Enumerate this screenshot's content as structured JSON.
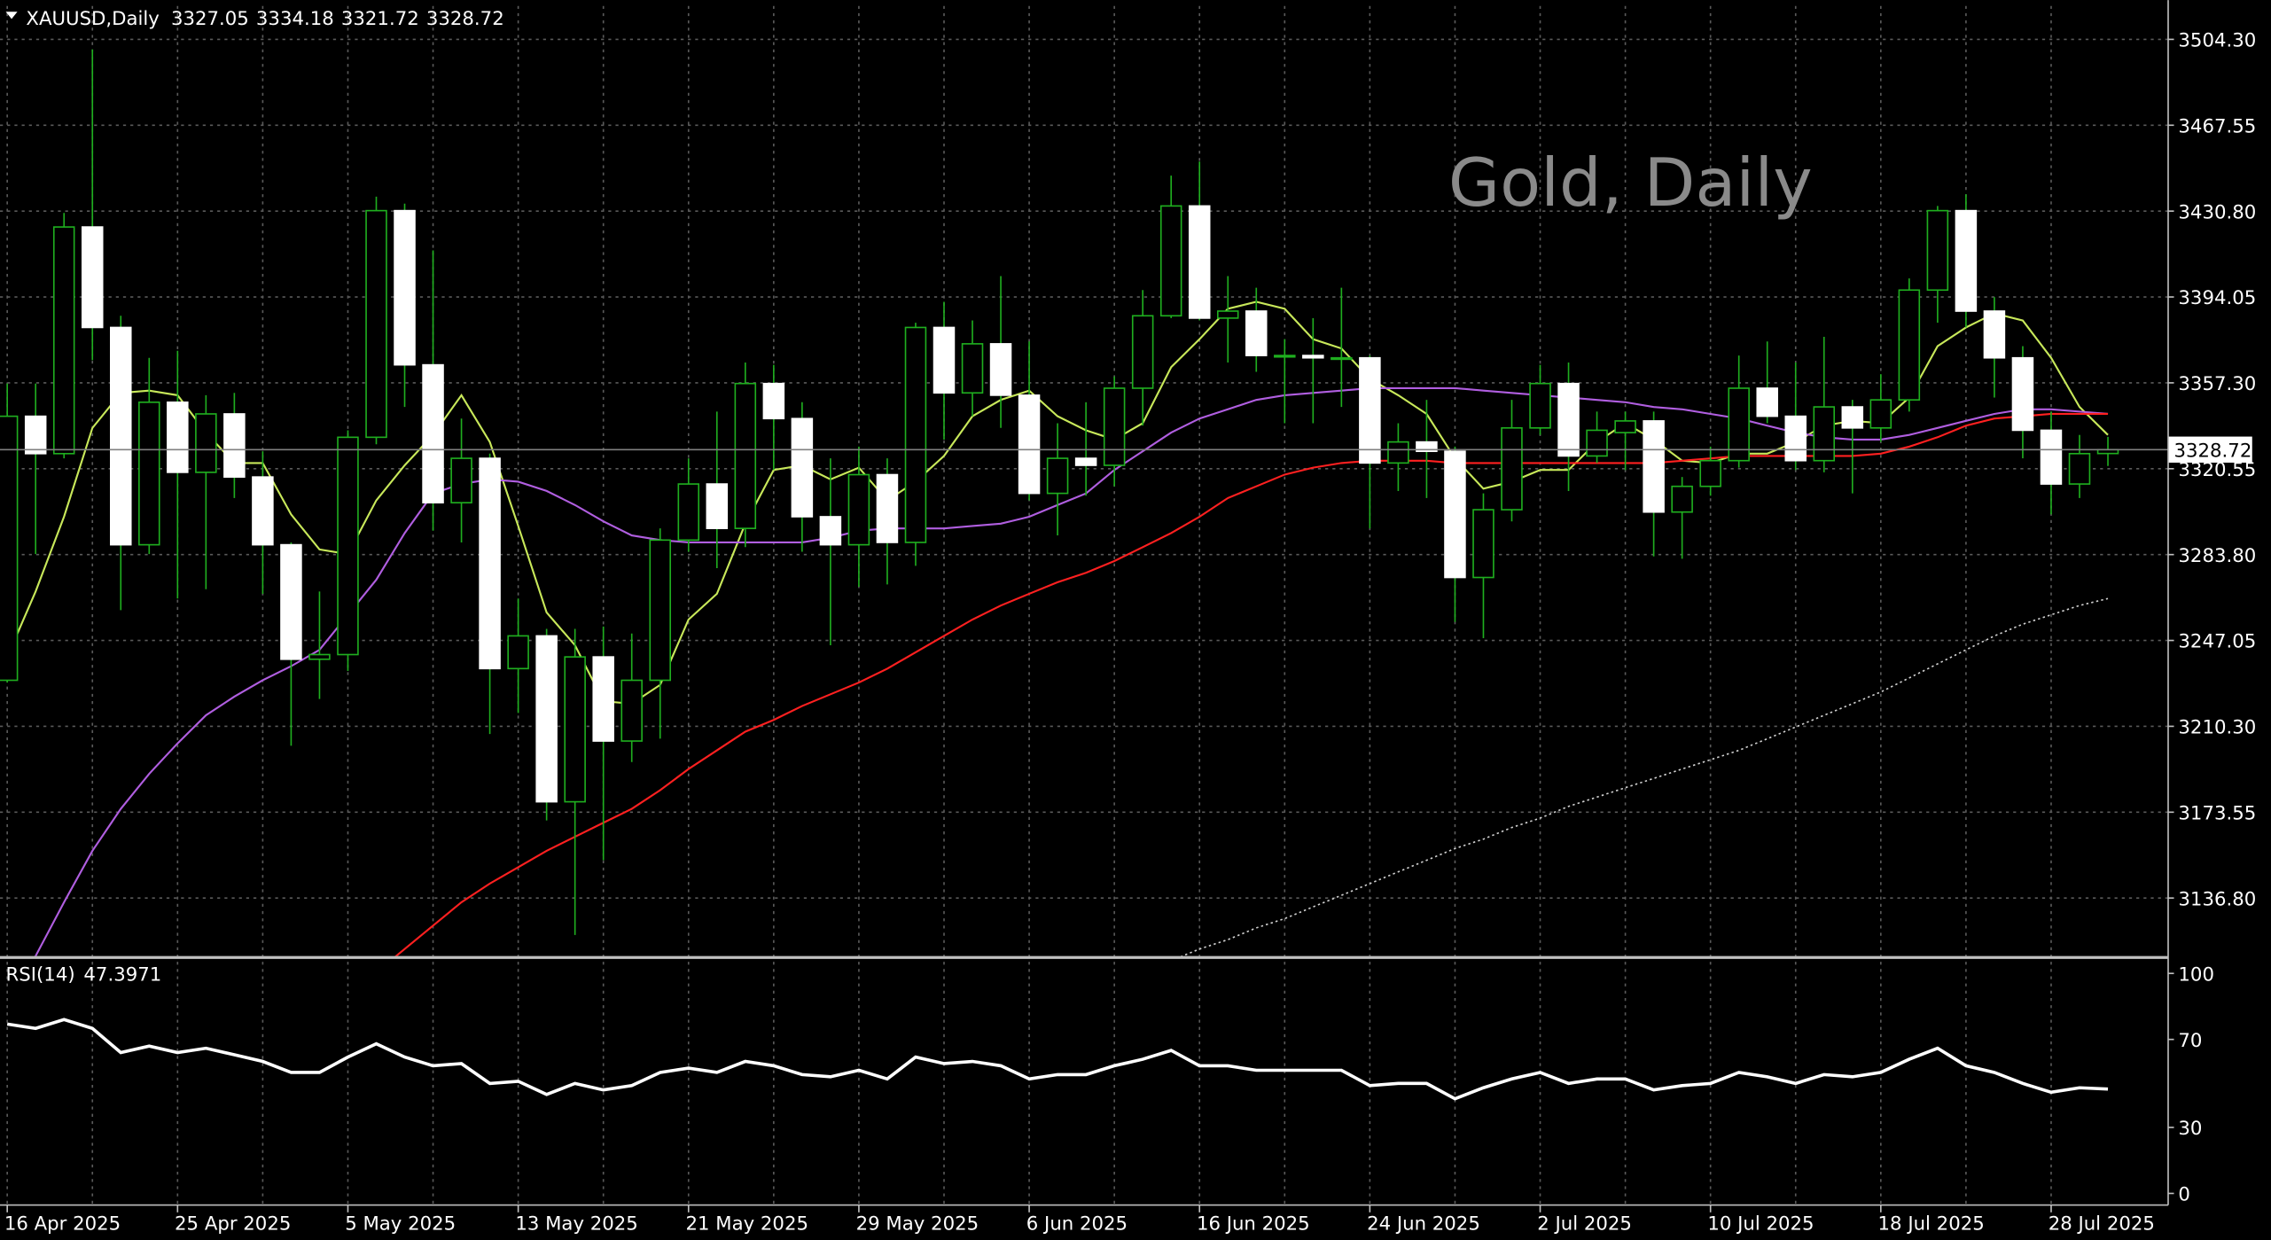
{
  "chart_data": [
    {
      "type": "candlestick",
      "title": "XAUUSD,Daily",
      "annotation": "Gold, Daily",
      "categories": [
        "16 Apr 2025",
        null,
        null,
        null,
        null,
        null,
        "25 Apr 2025",
        null,
        null,
        null,
        null,
        null,
        "5 May 2025",
        null,
        null,
        null,
        null,
        null,
        "13 May 2025",
        null,
        null,
        null,
        null,
        null,
        "21 May 2025",
        null,
        null,
        null,
        null,
        null,
        "29 May 2025",
        null,
        null,
        null,
        null,
        null,
        "6 Jun 2025",
        null,
        null,
        null,
        null,
        null,
        "16 Jun 2025",
        null,
        null,
        null,
        null,
        null,
        "24 Jun 2025",
        null,
        null,
        null,
        null,
        null,
        "2 Jul 2025",
        null,
        null,
        null,
        null,
        null,
        "10 Jul 2025",
        null,
        null,
        null,
        null,
        null,
        "18 Jul 2025",
        null,
        null,
        null,
        null,
        null,
        "28 Jul 2025",
        null,
        null
      ],
      "open": [
        3230,
        3343,
        3327,
        3424,
        3381,
        3288,
        3349,
        3319,
        3344,
        3317,
        3288,
        3239,
        3241,
        3334,
        3431,
        3365,
        3306,
        3325,
        3235,
        3249,
        3178,
        3240,
        3204,
        3230,
        3290,
        3314,
        3295,
        3357,
        3342,
        3300,
        3288,
        3318,
        3289,
        3381,
        3353,
        3374,
        3352,
        3310,
        3325,
        3322,
        3355,
        3386,
        3433,
        3385,
        3388,
        3369,
        3369,
        3368,
        3368,
        3323,
        3332,
        3328,
        3274,
        3303,
        3338,
        3357,
        3326,
        3336,
        3341,
        3302,
        3313,
        3324,
        3355,
        3343,
        3324,
        3347,
        3338,
        3350,
        3397,
        3431,
        3388,
        3368,
        3337,
        3314,
        3327.05
      ],
      "high": [
        3357,
        3357,
        3430,
        3500,
        3386,
        3368,
        3371,
        3352,
        3353,
        3328,
        3289,
        3268,
        3337,
        3437,
        3434,
        3414,
        3342,
        3327,
        3265,
        3252,
        3252,
        3253,
        3250,
        3295,
        3325,
        3345,
        3366,
        3365,
        3349,
        3325,
        3330,
        3325,
        3383,
        3392,
        3384,
        3403,
        3375,
        3340,
        3349,
        3360,
        3397,
        3446,
        3452,
        3403,
        3398,
        3376,
        3385,
        3398,
        3369,
        3340,
        3350,
        3330,
        3310,
        3350,
        3365,
        3366,
        3345,
        3345,
        3345,
        3317,
        3330,
        3369,
        3375,
        3366,
        3377,
        3350,
        3361,
        3402,
        3433,
        3438,
        3394,
        3373,
        3345,
        3335,
        3334.18
      ],
      "low": [
        3229,
        3284,
        3325,
        3367,
        3260,
        3284,
        3265,
        3269,
        3308,
        3267,
        3202,
        3222,
        3234,
        3331,
        3347,
        3294,
        3289,
        3207,
        3216,
        3170,
        3121,
        3153,
        3195,
        3205,
        3285,
        3278,
        3287,
        3320,
        3285,
        3245,
        3270,
        3271,
        3279,
        3333,
        3343,
        3338,
        3307,
        3292,
        3309,
        3313,
        3339,
        3385,
        3384,
        3366,
        3362,
        3340,
        3340,
        3347,
        3295,
        3311,
        3308,
        3255,
        3248,
        3298,
        3335,
        3311,
        3323,
        3320,
        3283,
        3282,
        3309,
        3321,
        3340,
        3320,
        3319,
        3310,
        3332,
        3345,
        3383,
        3381,
        3351,
        3325,
        3301,
        3308,
        3321.72
      ],
      "close": [
        3343,
        3327,
        3424,
        3381,
        3288,
        3349,
        3319,
        3344,
        3317,
        3288,
        3239,
        3241,
        3334,
        3431,
        3365,
        3306,
        3325,
        3235,
        3249,
        3178,
        3240,
        3204,
        3230,
        3290,
        3314,
        3295,
        3357,
        3342,
        3300,
        3288,
        3318,
        3289,
        3381,
        3353,
        3374,
        3352,
        3310,
        3325,
        3322,
        3355,
        3386,
        3433,
        3385,
        3388,
        3369,
        3369,
        3368,
        3368,
        3323,
        3332,
        3328,
        3274,
        3303,
        3338,
        3357,
        3326,
        3337,
        3341,
        3302,
        3313,
        3324,
        3355,
        3343,
        3324,
        3347,
        3338,
        3350,
        3397,
        3431,
        3388,
        3368,
        3337,
        3314,
        3327,
        3328.72
      ],
      "bull_color": "#000000",
      "bear_color": "#ffffff",
      "wick_color": "#1fae1f",
      "series": [
        {
          "color": "#c8e85a",
          "line_style": "solid",
          "values": [
            3240,
            3268,
            3300,
            3338,
            3353,
            3354,
            3352,
            3336,
            3323,
            3323,
            3301,
            3286,
            3284,
            3307,
            3322,
            3335,
            3352,
            3332,
            3296,
            3259,
            3245,
            3221,
            3220,
            3228,
            3256,
            3267,
            3297,
            3320,
            3322,
            3316,
            3321,
            3307,
            3315,
            3326,
            3343,
            3350,
            3354,
            3343,
            3337,
            3333,
            3340,
            3364,
            3376,
            3389,
            3392,
            3389,
            3376,
            3372,
            3359,
            3352,
            3344,
            3325,
            3312,
            3315,
            3320,
            3320,
            3332,
            3340,
            3333,
            3324,
            3323,
            3327,
            3327,
            3332,
            3339,
            3341,
            3340,
            3351,
            3373,
            3381,
            3387,
            3384,
            3368,
            3347,
            3335
          ]
        },
        {
          "color": "#b05ee0",
          "line_style": "solid",
          "values": [
            3100,
            3112,
            3135,
            3157,
            3175,
            3190,
            3203,
            3215,
            3223,
            3230,
            3236,
            3243,
            3258,
            3273,
            3293,
            3310,
            3314,
            3316,
            3315,
            3311,
            3305,
            3298,
            3292,
            3290,
            3289,
            3289,
            3289,
            3289,
            3289,
            3291,
            3294,
            3295,
            3295,
            3295,
            3296,
            3297,
            3300,
            3305,
            3310,
            3320,
            3328,
            3336,
            3342,
            3346,
            3350,
            3352,
            3353,
            3354,
            3355,
            3355,
            3355,
            3355,
            3354,
            3353,
            3352,
            3351,
            3350,
            3349,
            3347,
            3346,
            3344,
            3342,
            3339,
            3336,
            3334,
            3333,
            3333,
            3335,
            3338,
            3341,
            3344,
            3346,
            3346,
            3345,
            3344
          ]
        },
        {
          "color": "#ff2020",
          "line_style": "solid",
          "values": [
            null,
            null,
            null,
            null,
            null,
            null,
            null,
            null,
            null,
            null,
            null,
            null,
            null,
            3105,
            3115,
            3125,
            3135,
            3143,
            3150,
            3157,
            3163,
            3169,
            3175,
            3183,
            3192,
            3200,
            3208,
            3213,
            3219,
            3224,
            3229,
            3235,
            3242,
            3249,
            3256,
            3262,
            3267,
            3272,
            3276,
            3281,
            3287,
            3293,
            3300,
            3308,
            3313,
            3318,
            3321,
            3323,
            3324,
            3324,
            3324,
            3323,
            3323,
            3323,
            3323,
            3323,
            3323,
            3323,
            3323,
            3324,
            3325,
            3326,
            3326,
            3326,
            3326,
            3326,
            3327,
            3330,
            3334,
            3339,
            3342,
            3343,
            3344,
            3344,
            3344
          ]
        },
        {
          "color": "#d0d0d0",
          "line_style": "dotted",
          "values": [
            null,
            null,
            null,
            null,
            null,
            null,
            null,
            null,
            null,
            null,
            null,
            null,
            null,
            null,
            null,
            null,
            null,
            null,
            null,
            null,
            null,
            null,
            null,
            null,
            null,
            null,
            null,
            null,
            null,
            null,
            null,
            null,
            null,
            null,
            null,
            null,
            null,
            null,
            null,
            null,
            null,
            3110,
            3115,
            3119,
            3124,
            3128,
            3133,
            3138,
            3143,
            3148,
            3153,
            3158,
            3162,
            3167,
            3171,
            3176,
            3180,
            3184,
            3188,
            3192,
            3196,
            3200,
            3205,
            3210,
            3215,
            3220,
            3225,
            3231,
            3237,
            3243,
            3249,
            3254,
            3258,
            3262,
            3265
          ]
        }
      ],
      "ylim": [
        3112,
        3518.6
      ],
      "yticks": [
        {
          "value": 3136.8,
          "label": "3136.80"
        },
        {
          "value": 3173.55,
          "label": "3173.55"
        },
        {
          "value": 3210.3,
          "label": "3210.30"
        },
        {
          "value": 3247.05,
          "label": "3247.05"
        },
        {
          "value": 3283.8,
          "label": "3283.80"
        },
        {
          "value": 3320.55,
          "label": "3320.55"
        },
        {
          "value": 3357.3,
          "label": "3357.30"
        },
        {
          "value": 3394.05,
          "label": "3394.05"
        },
        {
          "value": 3430.8,
          "label": "3430.80"
        },
        {
          "value": 3467.55,
          "label": "3467.55"
        },
        {
          "value": 3504.3,
          "label": "3504.30"
        }
      ],
      "grid": true
    },
    {
      "type": "line",
      "title": "RSI(14)",
      "color": "#ffffff",
      "values": [
        77,
        75,
        79,
        75,
        64,
        67,
        64,
        66,
        63,
        60,
        55,
        55,
        62,
        68,
        62,
        58,
        59,
        50,
        51,
        45,
        50,
        47,
        49,
        55,
        57,
        55,
        60,
        58,
        54,
        53,
        56,
        52,
        62,
        59,
        60,
        58,
        52,
        54,
        54,
        58,
        61,
        65,
        58,
        58,
        56,
        56,
        56,
        56,
        49,
        50,
        50,
        43,
        48,
        52,
        55,
        50,
        52,
        52,
        47,
        49,
        50,
        55,
        53,
        50,
        54,
        53,
        55,
        61,
        66,
        58,
        55,
        50,
        46,
        48,
        47.3971
      ],
      "ylim": [
        -5.3,
        106.6
      ],
      "yticks": [
        0,
        30,
        70,
        100
      ],
      "grid": false
    }
  ]
}
